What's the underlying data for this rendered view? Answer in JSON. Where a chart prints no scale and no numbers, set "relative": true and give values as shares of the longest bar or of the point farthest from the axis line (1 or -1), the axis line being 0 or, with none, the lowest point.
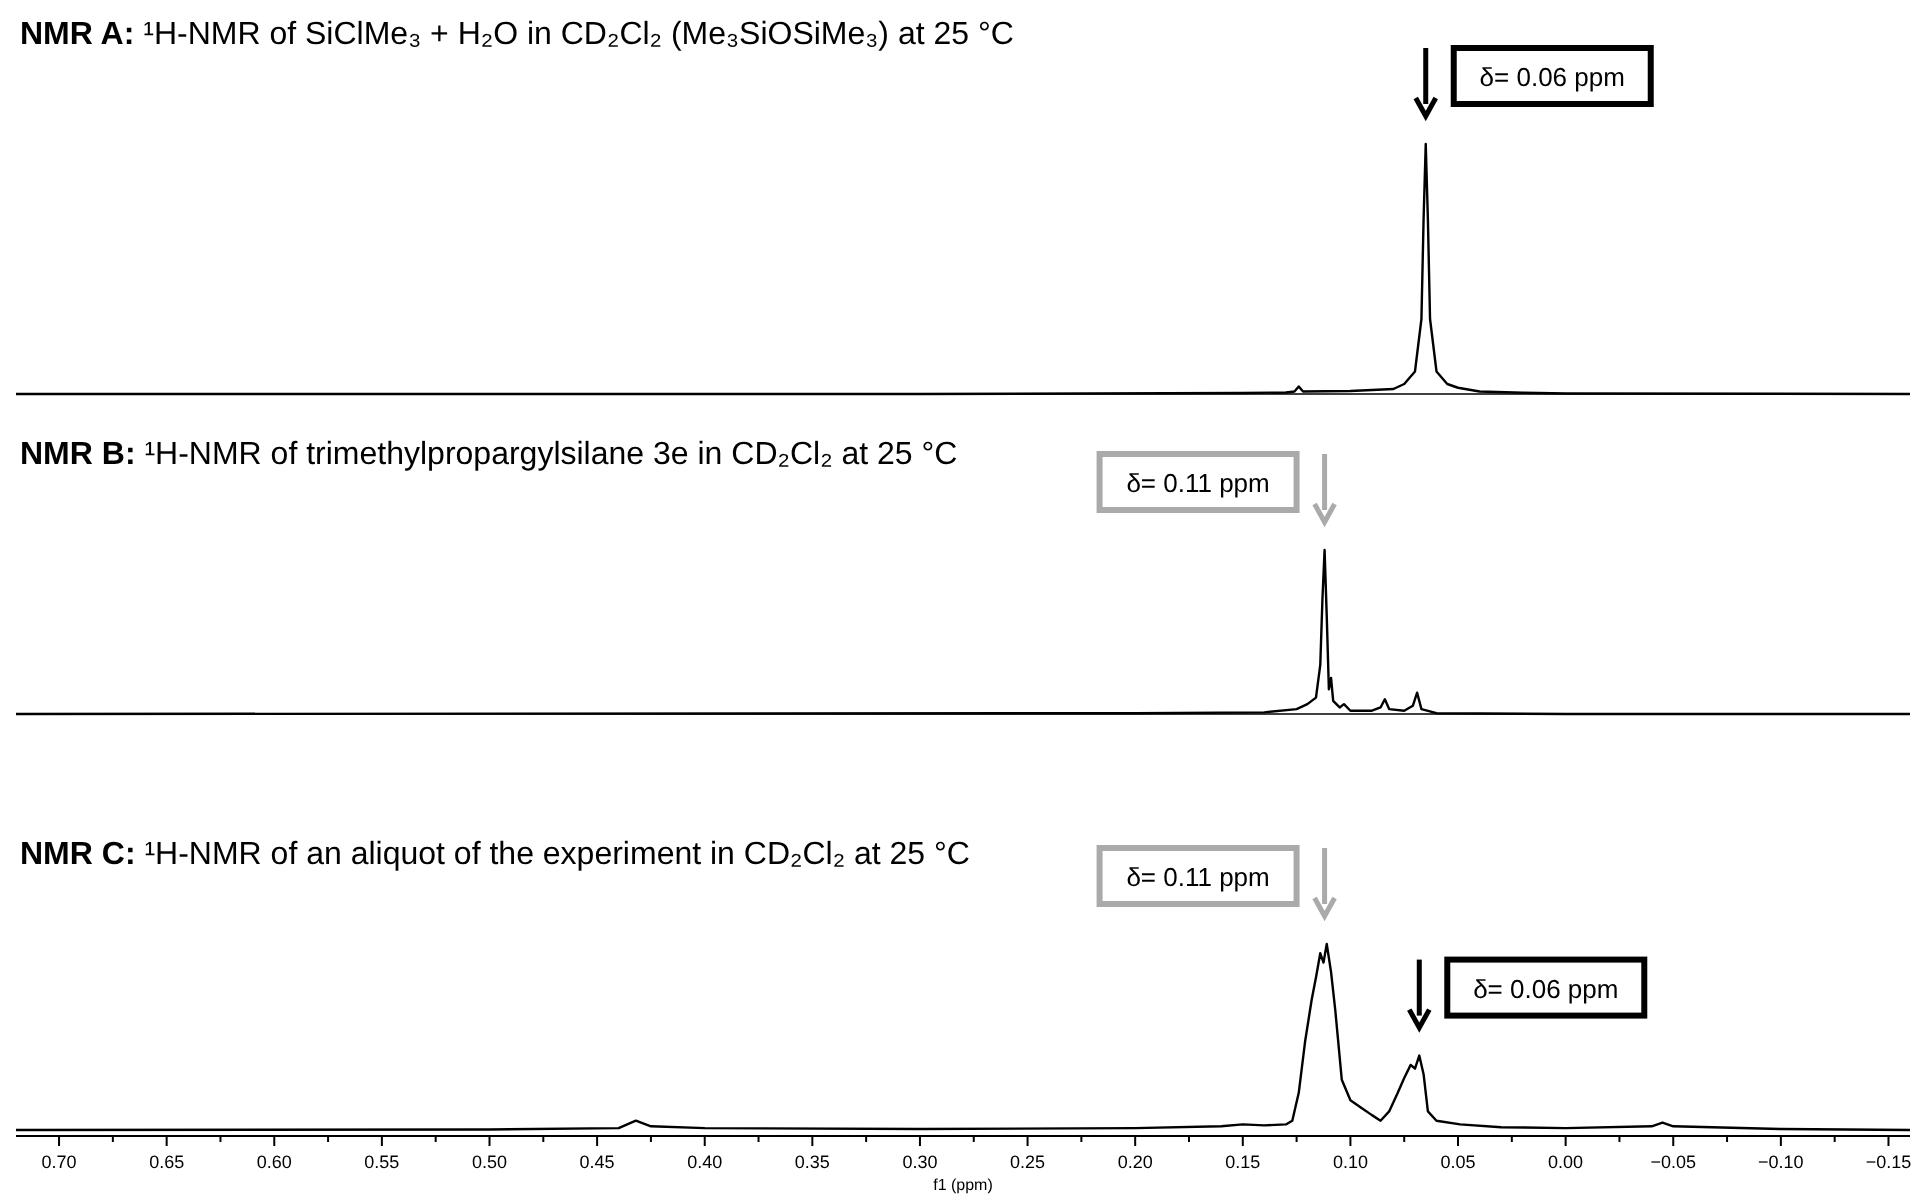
{
  "chart_data": [
    {
      "type": "line",
      "title": "NMR A: ¹H-NMR of SiClMe₃ + H₂O in CD₂Cl₂ (Me₃SiOSiMe₃) at  25 °C",
      "relative": true,
      "tick_labels": false,
      "xlim": [
        0.72,
        -0.16
      ],
      "color": "#000000",
      "x": [
        0.72,
        0.3,
        0.15,
        0.13,
        0.126,
        0.124,
        0.122,
        0.1,
        0.08,
        0.075,
        0.07,
        0.067,
        0.066,
        0.065,
        0.064,
        0.063,
        0.06,
        0.055,
        0.05,
        0.04,
        0.02,
        0,
        -0.16
      ],
      "values": [
        0,
        0,
        0.004,
        0.006,
        0.01,
        0.03,
        0.01,
        0.012,
        0.02,
        0.04,
        0.09,
        0.3,
        0.7,
        1,
        0.7,
        0.3,
        0.09,
        0.04,
        0.025,
        0.01,
        0.005,
        0.002,
        0
      ],
      "annotations": [
        {
          "text": "δ= 0.06 ppm",
          "x": 0.065,
          "y": 1
        }
      ]
    },
    {
      "type": "line",
      "title": "NMR B: ¹H-NMR of trimethylpropargylsilane 3e in CD₂Cl₂ at  25 °C",
      "relative": true,
      "tick_labels": false,
      "xlim": [
        0.72,
        -0.16
      ],
      "color": "#000000",
      "x": [
        0.72,
        0.2,
        0.14,
        0.125,
        0.12,
        0.116,
        0.114,
        0.113,
        0.112,
        0.111,
        0.11,
        0.109,
        0.108,
        0.105,
        0.103,
        0.1,
        0.09,
        0.086,
        0.084,
        0.082,
        0.075,
        0.071,
        0.069,
        0.067,
        0.06,
        0,
        -0.16
      ],
      "values": [
        0,
        0.005,
        0.01,
        0.03,
        0.06,
        0.1,
        0.3,
        0.7,
        1,
        0.6,
        0.15,
        0.22,
        0.08,
        0.04,
        0.06,
        0.02,
        0.02,
        0.04,
        0.09,
        0.03,
        0.02,
        0.05,
        0.13,
        0.03,
        0.005,
        0,
        0
      ],
      "annotations": [
        {
          "text": "δ= 0.11 ppm",
          "x": 0.112,
          "y": 1
        }
      ]
    },
    {
      "type": "line",
      "title": "NMR C: ¹H-NMR of an aliquot of the experiment in CD₂Cl₂ at 25 °C",
      "xlabel": "f1 (ppm)",
      "relative": true,
      "tick_labels": "x",
      "xlim": [
        0.72,
        -0.16
      ],
      "color": "#000000",
      "xticks": [
        {
          "value": 0.7,
          "label": "0.70"
        },
        {
          "value": 0.675,
          "label": null
        },
        0.65,
        {
          "value": 0.625,
          "label": null
        },
        {
          "value": 0.6,
          "label": "0.60"
        },
        {
          "value": 0.575,
          "label": null
        },
        0.55,
        {
          "value": 0.525,
          "label": null
        },
        {
          "value": 0.5,
          "label": "0.50"
        },
        {
          "value": 0.475,
          "label": null
        },
        0.45,
        {
          "value": 0.425,
          "label": null
        },
        {
          "value": 0.4,
          "label": "0.40"
        },
        {
          "value": 0.375,
          "label": null
        },
        0.35,
        {
          "value": 0.325,
          "label": null
        },
        {
          "value": 0.3,
          "label": "0.30"
        },
        {
          "value": 0.275,
          "label": null
        },
        0.25,
        {
          "value": 0.225,
          "label": null
        },
        {
          "value": 0.2,
          "label": "0.20"
        },
        {
          "value": 0.175,
          "label": null
        },
        0.15,
        {
          "value": 0.125,
          "label": null
        },
        {
          "value": 0.1,
          "label": "0.10"
        },
        {
          "value": 0.075,
          "label": null
        },
        0.05,
        {
          "value": 0.025,
          "label": null
        },
        {
          "value": 0,
          "label": "0.00"
        },
        {
          "value": -0.025,
          "label": null
        },
        {
          "value": -0.05,
          "label": "−0.05"
        },
        {
          "value": -0.075,
          "label": null
        },
        {
          "value": -0.1,
          "label": "−0.10"
        },
        {
          "value": -0.125,
          "label": null
        },
        {
          "value": -0.15,
          "label": "−0.15"
        }
      ],
      "x": [
        0.72,
        0.5,
        0.44,
        0.432,
        0.425,
        0.4,
        0.3,
        0.2,
        0.16,
        0.15,
        0.14,
        0.13,
        0.127,
        0.124,
        0.121,
        0.118,
        0.116,
        0.114,
        0.1125,
        0.111,
        0.109,
        0.107,
        0.104,
        0.1,
        0.095,
        0.09,
        0.086,
        0.082,
        0.078,
        0.075,
        0.072,
        0.07,
        0.068,
        0.066,
        0.064,
        0.06,
        0.049,
        0.03,
        0,
        -0.04,
        -0.045,
        -0.05,
        -0.1,
        -0.16
      ],
      "values": [
        0,
        0.003,
        0.01,
        0.05,
        0.02,
        0.01,
        0.005,
        0.01,
        0.02,
        0.03,
        0.025,
        0.03,
        0.05,
        0.2,
        0.48,
        0.7,
        0.82,
        0.95,
        0.9,
        1,
        0.85,
        0.64,
        0.27,
        0.16,
        0.12,
        0.08,
        0.05,
        0.1,
        0.2,
        0.28,
        0.35,
        0.33,
        0.4,
        0.3,
        0.1,
        0.05,
        0.03,
        0.015,
        0.01,
        0.02,
        0.04,
        0.02,
        0.005,
        0
      ],
      "annotations": [
        {
          "text": "δ= 0.11 ppm",
          "x": 0.112,
          "y": 1
        },
        {
          "text": "δ= 0.06 ppm",
          "x": 0.068,
          "y": 0.4
        }
      ]
    }
  ]
}
